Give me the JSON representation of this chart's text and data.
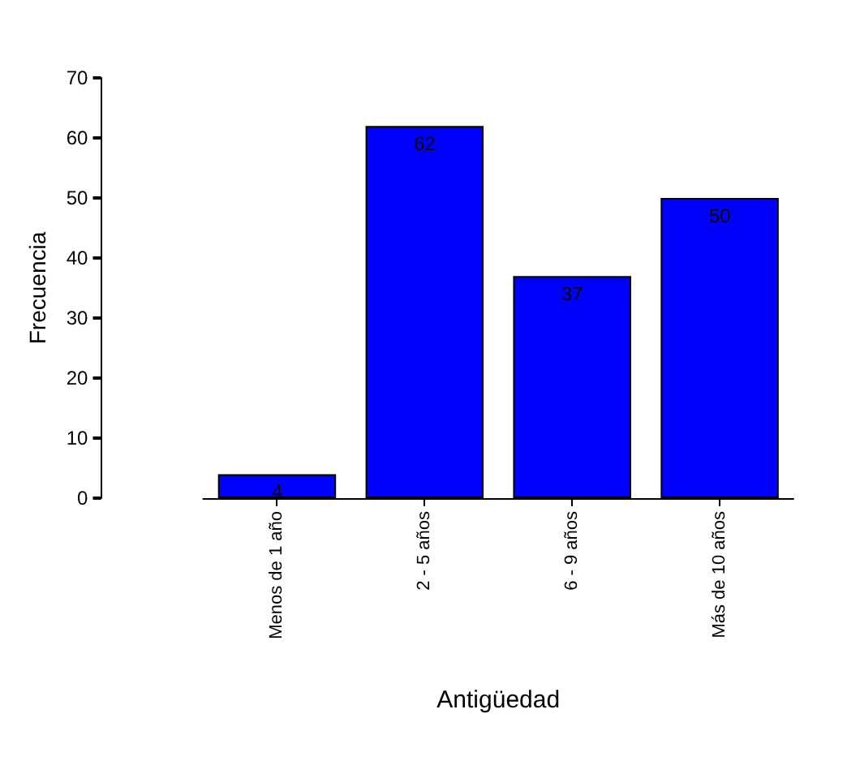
{
  "chart_data": {
    "type": "bar",
    "xlabel": "Antigüedad",
    "ylabel": "Frecuencia",
    "categories": [
      "Menos de 1 año",
      "2 - 5 años",
      "6 - 9 años",
      "Más de 10 años"
    ],
    "values": [
      4,
      62,
      37,
      50
    ],
    "color": "#0000ff",
    "ylim": [
      0,
      70
    ],
    "yticks": [
      0,
      10,
      20,
      30,
      40,
      50,
      60,
      70
    ],
    "grid": false,
    "data_labels": true
  }
}
